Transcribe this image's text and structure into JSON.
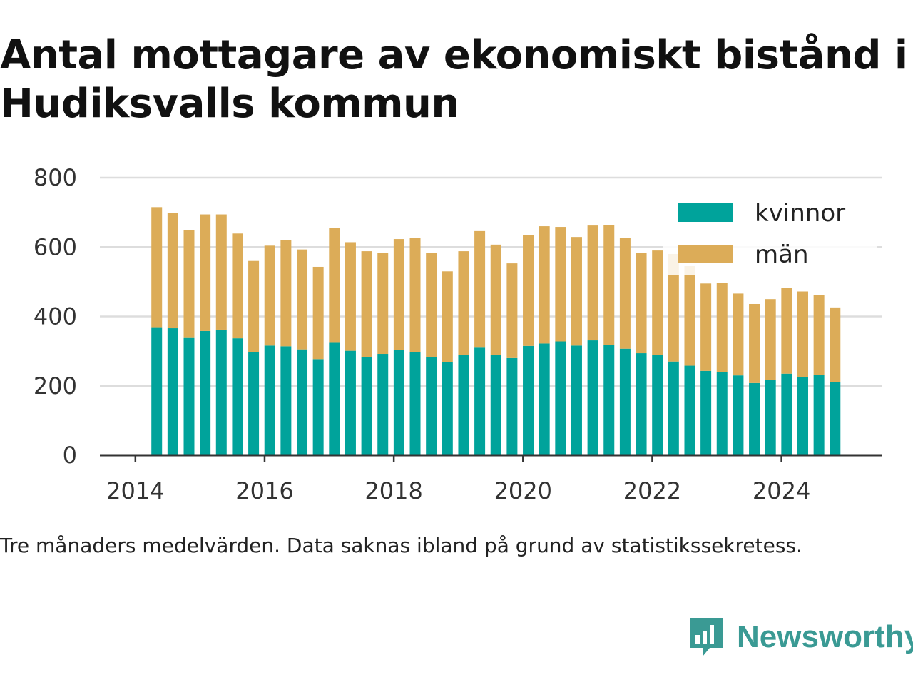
{
  "title": "Antal mottagare av ekonomiskt bistånd i Hudiksvalls kommun",
  "footnote": "Tre månaders medelvärden. Data saknas ibland på grund av statistikssekretess.",
  "brand": "Newsworthy",
  "colors": {
    "kvinnor": "#00a39b",
    "man": "#dcac58",
    "grid": "#dddddd",
    "axis": "#333333"
  },
  "chart_data": {
    "type": "bar",
    "stacked": true,
    "x": [
      2014.33,
      2014.58,
      2014.83,
      2015.08,
      2015.33,
      2015.58,
      2015.83,
      2016.08,
      2016.33,
      2016.58,
      2016.83,
      2017.08,
      2017.33,
      2017.58,
      2017.83,
      2018.08,
      2018.33,
      2018.58,
      2018.83,
      2019.08,
      2019.33,
      2019.58,
      2019.83,
      2020.08,
      2020.33,
      2020.58,
      2020.83,
      2021.08,
      2021.33,
      2021.58,
      2021.83,
      2022.08,
      2022.33,
      2022.58,
      2022.83,
      2023.08,
      2023.33,
      2023.58,
      2023.83,
      2024.08,
      2024.33,
      2024.58,
      2024.83
    ],
    "series": [
      {
        "name": "kvinnor",
        "values": [
          369,
          366,
          340,
          358,
          362,
          337,
          298,
          316,
          314,
          305,
          277,
          324,
          301,
          282,
          292,
          303,
          298,
          282,
          268,
          290,
          310,
          290,
          280,
          315,
          322,
          328,
          316,
          331,
          318,
          307,
          294,
          288,
          270,
          258,
          243,
          240,
          230,
          208,
          218,
          235,
          226,
          232,
          210
        ]
      },
      {
        "name": "män",
        "values": [
          346,
          332,
          308,
          336,
          332,
          302,
          262,
          288,
          306,
          288,
          266,
          330,
          313,
          306,
          290,
          320,
          328,
          302,
          262,
          298,
          336,
          317,
          273,
          320,
          338,
          330,
          313,
          331,
          346,
          320,
          288,
          302,
          310,
          287,
          252,
          256,
          236,
          228,
          232,
          248,
          246,
          230,
          216
        ]
      }
    ],
    "ylim": [
      0,
      800
    ],
    "yticks": [
      0,
      200,
      400,
      600,
      800
    ],
    "xticks": [
      2014,
      2016,
      2018,
      2020,
      2022,
      2024
    ],
    "xlim": [
      2013.45,
      2025.55
    ],
    "grid": true,
    "legend_position": "top-right",
    "xlabel": "",
    "ylabel": ""
  }
}
